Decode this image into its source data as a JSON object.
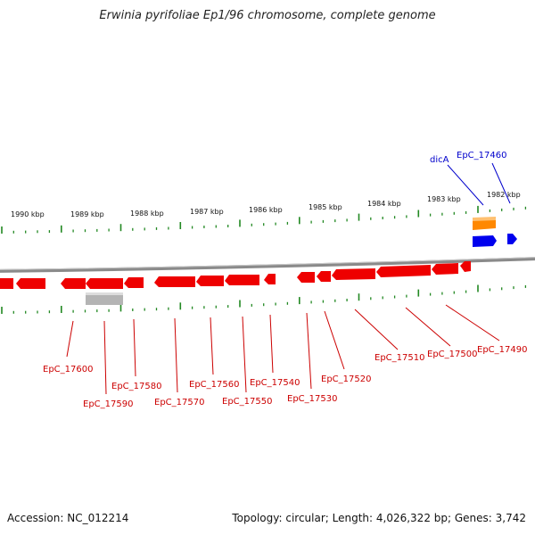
{
  "title": "Erwinia pyrifoliae Ep1/96 chromosome, complete genome",
  "footer": {
    "accession": "Accession: NC_012214",
    "summary": "Topology: circular; Length: 4,026,322 bp; Genes: 3,742"
  },
  "colors": {
    "forward_gene": "#0000ee",
    "reverse_gene": "#ee0000",
    "rna": "#ff8800",
    "pseudo": "#aaaaaa",
    "tick": "#228822",
    "backbone": "#888888"
  },
  "ruler_labels": [
    "1990 kbp",
    "1989 kbp",
    "1988 kbp",
    "1987 kbp",
    "1986 kbp",
    "1985 kbp",
    "1984 kbp",
    "1983 kbp",
    "1982 kbp"
  ],
  "gene_labels": {
    "dicA": "dicA",
    "EpC_17460": "EpC_17460",
    "EpC_17490": "EpC_17490",
    "EpC_17500": "EpC_17500",
    "EpC_17510": "EpC_17510",
    "EpC_17520": "EpC_17520",
    "EpC_17530": "EpC_17530",
    "EpC_17540": "EpC_17540",
    "EpC_17550": "EpC_17550",
    "EpC_17560": "EpC_17560",
    "EpC_17570": "EpC_17570",
    "EpC_17580": "EpC_17580",
    "EpC_17590": "EpC_17590",
    "EpC_17600": "EpC_17600"
  }
}
